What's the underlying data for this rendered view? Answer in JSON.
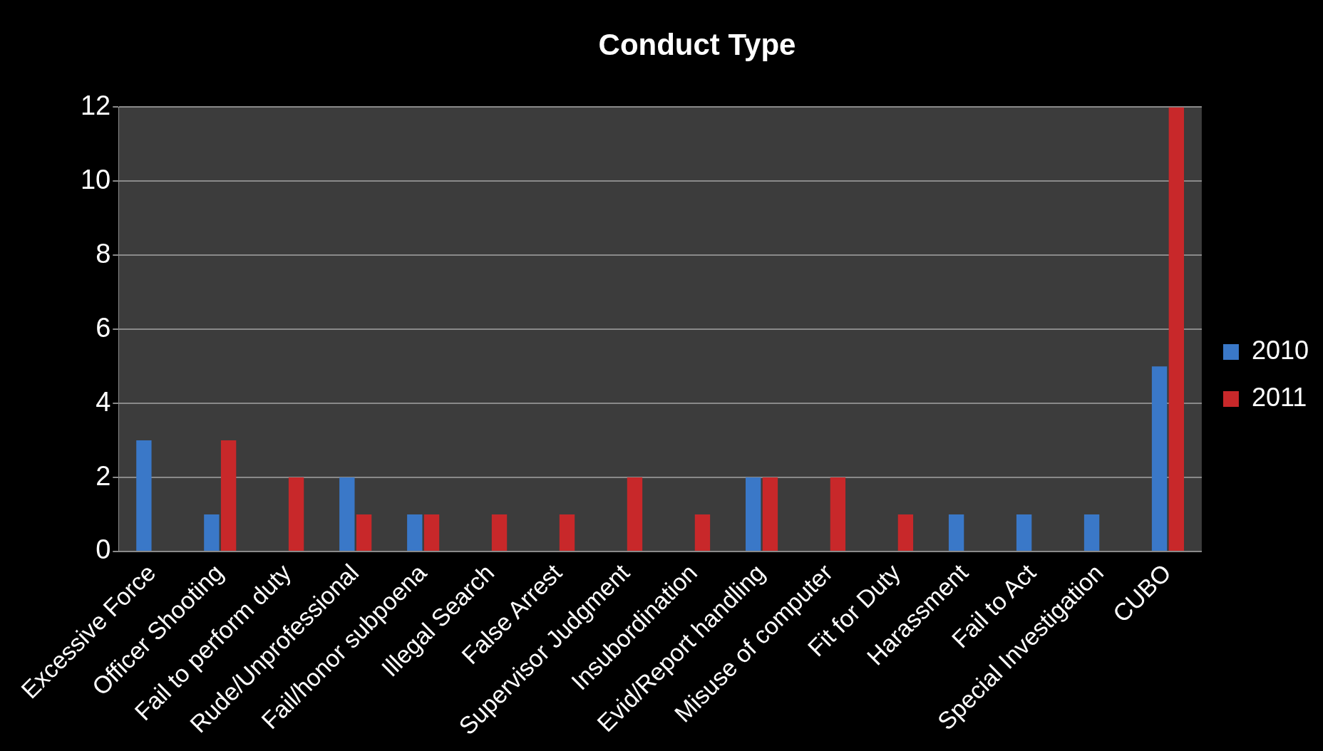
{
  "chart_data": {
    "type": "bar",
    "title": "Conduct Type",
    "categories": [
      "Excessive Force",
      "Officer Shooting",
      "Fail to perform duty",
      "Rude/Unprofessional",
      "Fail/honor subpoena",
      "Illegal Search",
      "False Arrest",
      "Supervisor Judgment",
      "Insubordination",
      "Evid/Report handling",
      "Misuse of computer",
      "Fit for Duty",
      "Harassment",
      "Fail to Act",
      "Special Investigation",
      "CUBO"
    ],
    "series": [
      {
        "name": "2010",
        "color": "#3a78c8",
        "values": [
          3,
          1,
          0,
          2,
          1,
          0,
          0,
          0,
          0,
          2,
          0,
          0,
          1,
          1,
          1,
          5
        ]
      },
      {
        "name": "2011",
        "color": "#c8282a",
        "values": [
          0,
          3,
          2,
          1,
          1,
          1,
          1,
          2,
          1,
          2,
          2,
          1,
          0,
          0,
          0,
          12
        ]
      }
    ],
    "ylim": [
      0,
      12
    ],
    "yticks": [
      0,
      2,
      4,
      6,
      8,
      10,
      12
    ],
    "grid": "y",
    "legend": "right"
  }
}
